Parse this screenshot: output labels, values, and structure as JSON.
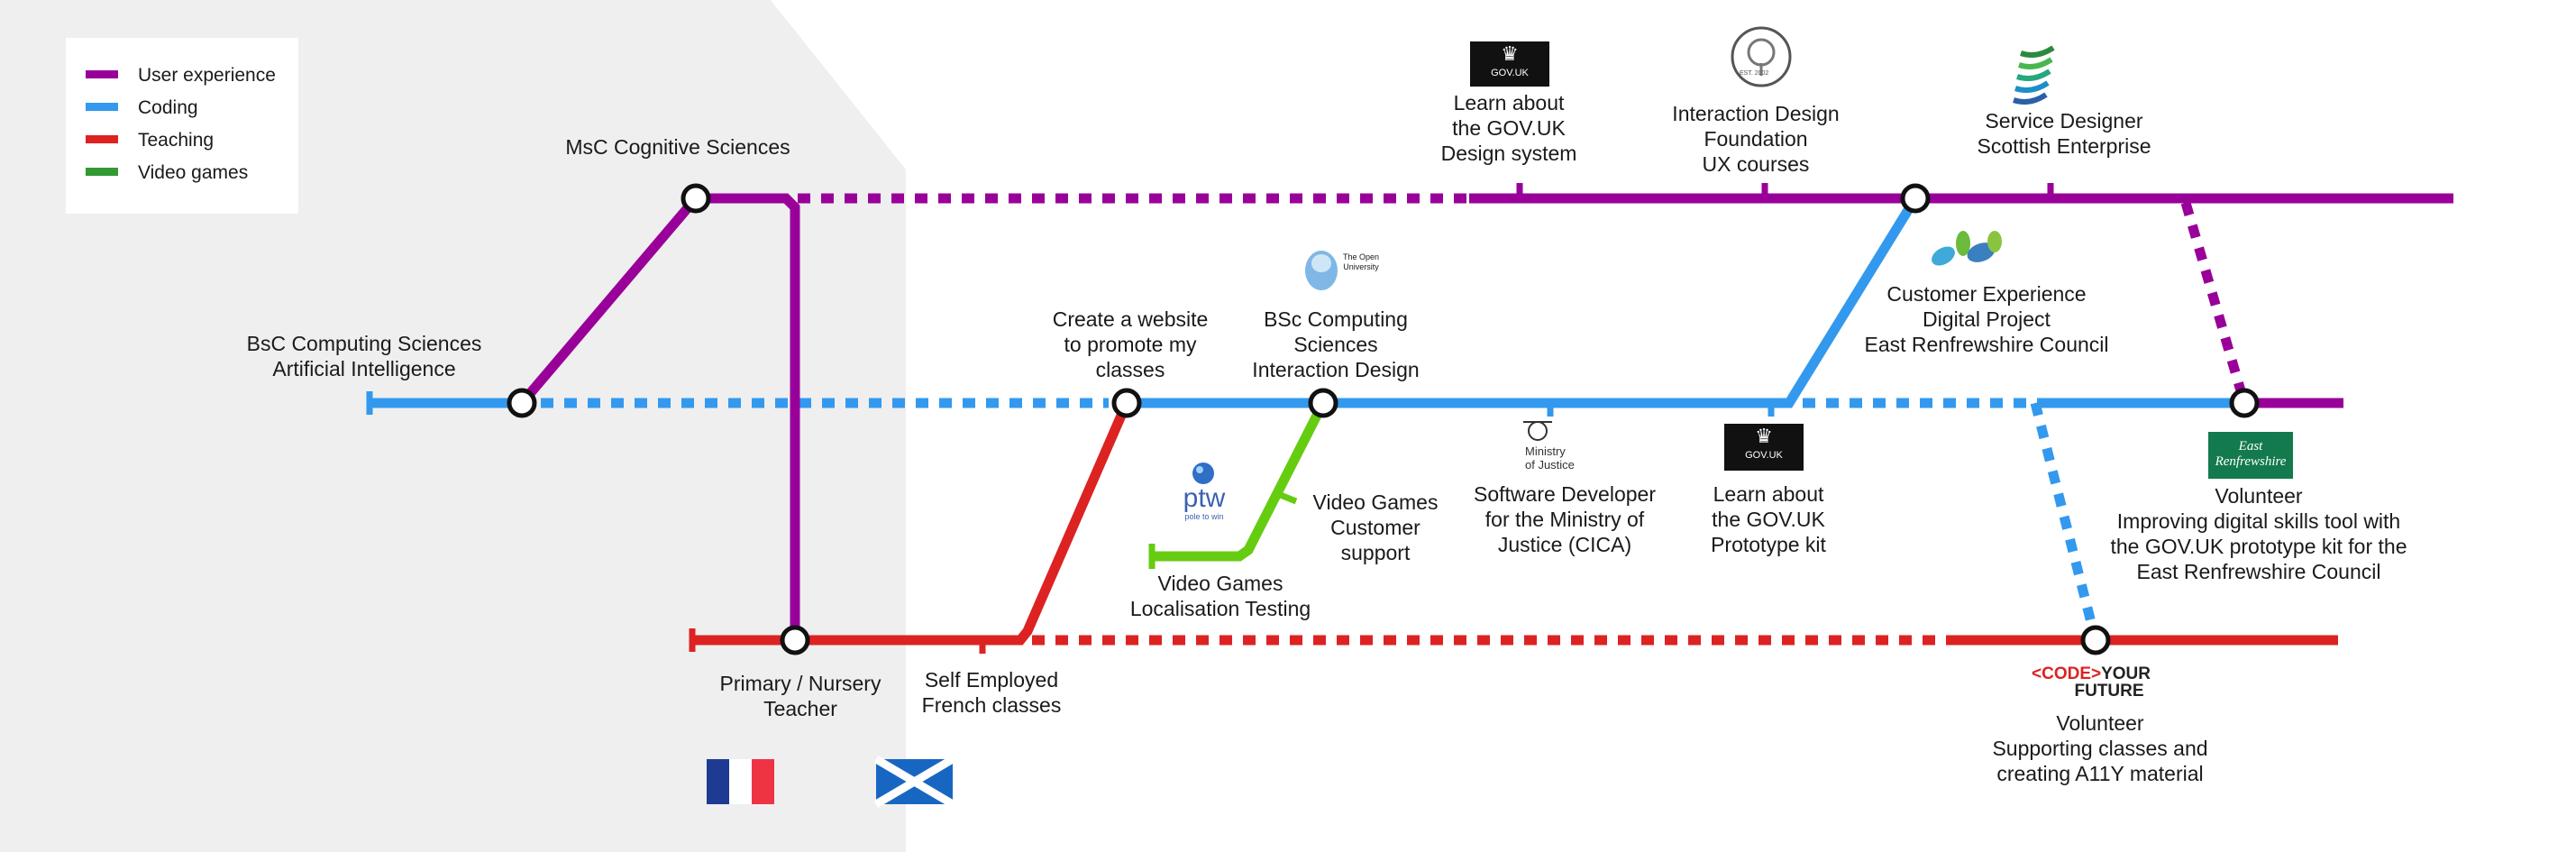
{
  "legend": {
    "items": [
      {
        "label": "User experience",
        "color": "#990099"
      },
      {
        "label": "Coding",
        "color": "#3399ee"
      },
      {
        "label": "Teaching",
        "color": "#dd2222"
      },
      {
        "label": "Video games",
        "color": "#339933"
      }
    ]
  },
  "colors": {
    "ux": "#990099",
    "coding": "#3399ee",
    "teaching": "#dd2222",
    "videogames_line": "#66cc11",
    "panel": "#efefef"
  },
  "stations": {
    "bsc_ai": [
      "BsC Computing Sciences",
      "Artificial Intelligence"
    ],
    "msc": [
      "MsC Cognitive Sciences"
    ],
    "teacher": [
      "Primary / Nursery",
      "Teacher"
    ],
    "self_employed": [
      "Self Employed",
      "French classes"
    ],
    "website": [
      "Create a website",
      "to promote my",
      "classes"
    ],
    "bsc_ixd": [
      "BSc Computing",
      "Sciences",
      "Interaction Design"
    ],
    "vg_support": [
      "Video Games",
      "Customer",
      "support"
    ],
    "vg_loc": [
      "Video Games",
      "Localisation Testing"
    ],
    "moj": [
      "Software Developer",
      "for the Ministry of",
      "Justice (CICA)"
    ],
    "prototype": [
      "Learn about",
      "the GOV.UK",
      "Prototype kit"
    ],
    "design_system": [
      "Learn about",
      "the GOV.UK",
      "Design system"
    ],
    "idf": [
      "Interaction Design",
      "Foundation",
      "UX courses"
    ],
    "service_designer": [
      "Service Designer",
      "Scottish Enterprise"
    ],
    "cx": [
      "Customer Experience",
      "Digital Project",
      "East Renfrewshire Council"
    ],
    "volunteer_erc": [
      "Volunteer",
      "Improving digital skills tool with",
      "the GOV.UK prototype kit for the",
      "East Renfrewshire Council"
    ],
    "volunteer_cyf": [
      "Volunteer",
      "Supporting classes and",
      "creating A11Y material"
    ]
  },
  "logos": {
    "govuk": "GOV.UK",
    "open_university": [
      "The Open",
      "University"
    ],
    "ptw": "ptw",
    "ptw_sub": "pole to win",
    "moj": [
      "Ministry",
      "of Justice"
    ],
    "codeyourfuture_code": "<CODE>",
    "codeyourfuture_your": "YOUR",
    "codeyourfuture_future": "FUTURE",
    "east_renfrewshire": [
      "East",
      "Renfrewshire"
    ],
    "idf_small": "EST. 2002"
  },
  "flags": [
    "france-flag",
    "scotland-flag"
  ]
}
